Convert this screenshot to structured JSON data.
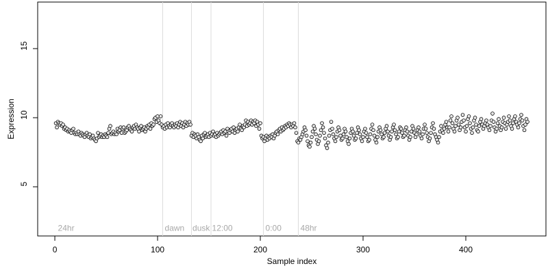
{
  "chart_data": {
    "type": "scatter",
    "xlabel": "Sample index",
    "ylabel": "Expression",
    "xlim": [
      -16.7,
      478
    ],
    "ylim": [
      1.44,
      18.37
    ],
    "xticks": [
      0,
      100,
      200,
      300,
      400
    ],
    "yticks": [
      5,
      10,
      15
    ],
    "vlines": [
      105,
      133,
      152,
      203,
      237
    ],
    "annotations": [
      {
        "x": 3,
        "y": 2,
        "label": "24hr"
      },
      {
        "x": 107,
        "y": 2,
        "label": "dawn"
      },
      {
        "x": 134,
        "y": 2,
        "label": "dusk"
      },
      {
        "x": 153,
        "y": 2,
        "label": "12:00"
      },
      {
        "x": 205,
        "y": 2,
        "label": "0:00"
      },
      {
        "x": 239,
        "y": 2,
        "label": "48hr"
      }
    ],
    "series": [
      {
        "color": "#e6e6e6",
        "x": [
          1,
          2,
          3,
          4,
          5,
          6,
          7,
          8,
          9,
          10,
          11,
          12,
          13,
          14,
          15,
          16,
          17,
          18,
          19,
          20,
          21,
          22,
          23,
          24,
          25,
          26,
          27,
          28,
          29,
          30,
          31,
          32,
          33,
          34,
          35,
          36,
          37,
          38,
          39,
          40,
          41,
          42,
          43,
          44,
          45,
          46,
          47,
          48,
          49,
          50,
          51,
          52,
          53,
          54,
          55,
          56,
          57,
          58,
          59,
          60,
          61,
          62,
          63,
          64,
          65,
          66,
          67,
          68,
          69,
          70,
          71,
          72,
          73,
          74,
          75,
          76,
          77,
          78,
          79,
          80,
          81,
          82,
          83,
          84,
          85,
          86,
          87,
          88,
          89,
          90,
          91,
          92,
          93,
          94,
          95,
          96,
          97,
          98,
          99,
          100,
          101,
          102,
          103,
          104,
          105,
          106,
          107,
          108,
          109,
          110,
          111,
          112,
          113,
          114,
          115,
          116,
          117,
          118,
          119,
          120,
          121,
          122,
          123,
          124,
          125,
          126,
          127,
          128,
          129,
          130,
          131,
          132,
          133,
          134,
          135,
          136,
          137,
          138,
          139,
          140,
          141,
          142,
          143,
          144,
          145,
          146,
          147,
          148,
          149,
          150,
          151,
          152,
          153,
          154,
          155,
          156,
          157,
          158,
          159,
          160,
          161,
          162,
          163,
          164,
          165,
          166,
          167,
          168,
          169,
          170,
          171,
          172,
          173,
          174,
          175,
          176,
          177,
          178,
          179,
          180,
          181,
          182,
          183,
          184,
          185,
          186,
          187,
          188,
          189,
          190,
          191,
          192,
          193,
          194,
          195,
          196,
          197,
          198,
          199,
          200,
          201,
          202,
          203,
          204,
          205,
          206,
          207,
          208,
          209,
          210,
          211,
          212,
          213,
          214,
          215,
          216,
          217,
          218,
          219,
          220,
          221,
          222,
          223,
          224,
          225,
          226,
          227,
          228,
          229,
          230,
          231,
          232,
          233,
          234,
          235,
          236,
          237,
          238,
          239,
          240,
          241,
          242,
          243,
          244,
          245,
          246,
          247,
          248,
          249,
          250,
          251,
          252,
          253,
          254,
          255,
          256,
          257,
          258,
          259,
          260,
          261,
          262,
          263,
          264,
          265,
          266,
          267,
          268,
          269,
          270,
          271,
          272,
          273,
          274,
          275,
          276,
          277,
          278,
          279,
          280,
          281,
          282,
          283,
          284,
          285,
          286,
          287,
          288,
          289,
          290,
          291,
          292,
          293,
          294,
          295,
          296,
          297,
          298,
          299,
          300,
          301,
          302,
          303,
          304,
          305,
          306,
          307,
          308,
          309,
          310,
          311,
          312,
          313,
          314,
          315,
          316,
          317,
          318,
          319,
          320,
          321,
          322,
          323,
          324,
          325,
          326,
          327,
          328,
          329,
          330,
          331,
          332,
          333,
          334,
          335,
          336,
          337,
          338,
          339,
          340,
          341,
          342,
          343,
          344,
          345,
          346,
          347,
          348,
          349,
          350,
          351,
          352,
          353,
          354,
          355,
          356,
          357,
          358,
          359,
          360,
          361,
          362,
          363,
          364,
          365,
          366,
          367,
          368,
          369,
          370,
          371,
          372,
          373,
          374,
          375,
          376,
          377,
          378,
          379,
          380,
          381,
          382,
          383,
          384,
          385,
          386,
          387,
          388,
          389,
          390,
          391,
          392,
          393,
          394,
          395,
          396,
          397,
          398,
          399,
          400,
          401,
          402,
          403,
          404,
          405,
          406,
          407,
          408,
          409,
          410,
          411,
          412,
          413,
          414,
          415,
          416,
          417,
          418,
          419,
          420,
          421,
          422,
          423,
          424,
          425,
          426,
          427,
          428,
          429,
          430,
          431,
          432,
          433,
          434,
          435,
          436,
          437,
          438,
          439,
          440,
          441,
          442,
          443,
          444,
          445,
          446,
          447,
          448,
          449,
          450,
          451,
          452,
          453,
          454,
          455,
          456,
          457,
          458,
          459,
          460
        ],
        "values": [
          9.6,
          9.3,
          9.7,
          9.6,
          9.5,
          9.6,
          9.4,
          9.5,
          9.2,
          9.3,
          9.1,
          9.2,
          9.0,
          9.1,
          9.0,
          8.9,
          9.1,
          9.2,
          8.9,
          8.8,
          8.9,
          8.8,
          9.0,
          8.8,
          8.7,
          8.9,
          8.8,
          8.7,
          8.6,
          8.8,
          8.9,
          8.7,
          8.6,
          8.8,
          8.5,
          8.6,
          8.7,
          8.5,
          8.4,
          8.3,
          8.5,
          8.9,
          8.6,
          8.7,
          8.8,
          8.6,
          8.7,
          8.6,
          8.8,
          8.7,
          8.6,
          8.9,
          9.2,
          9.4,
          8.8,
          8.9,
          9.0,
          8.8,
          8.9,
          8.8,
          9.2,
          9.0,
          9.1,
          9.3,
          8.9,
          9.2,
          9.3,
          8.9,
          9.0,
          9.1,
          9.3,
          9.4,
          9.2,
          9.1,
          9.0,
          9.3,
          9.4,
          9.2,
          9.5,
          9.3,
          9.2,
          9.0,
          9.3,
          9.4,
          9.1,
          9.2,
          9.3,
          9.0,
          9.2,
          9.4,
          9.3,
          9.5,
          9.2,
          9.6,
          9.4,
          9.5,
          9.9,
          10.0,
          9.7,
          10.1,
          9.8,
          9.6,
          10.1,
          9.5,
          9.3,
          9.4,
          9.2,
          9.5,
          9.3,
          9.6,
          9.4,
          9.3,
          9.5,
          9.6,
          9.4,
          9.3,
          9.5,
          9.4,
          9.6,
          9.3,
          9.5,
          9.7,
          9.4,
          9.6,
          9.3,
          9.5,
          9.7,
          9.4,
          9.6,
          9.5,
          9.7,
          9.5,
          8.7,
          8.9,
          8.6,
          8.8,
          8.7,
          8.5,
          8.8,
          8.6,
          8.4,
          8.3,
          8.7,
          8.5,
          8.8,
          8.9,
          8.6,
          8.7,
          8.8,
          8.6,
          8.9,
          8.7,
          8.8,
          9.0,
          8.7,
          8.8,
          8.6,
          8.9,
          8.7,
          8.8,
          8.9,
          9.0,
          8.8,
          9.1,
          8.9,
          9.0,
          8.7,
          9.2,
          9.0,
          8.9,
          9.1,
          9.2,
          9.0,
          9.3,
          8.9,
          9.1,
          9.2,
          9.0,
          9.3,
          9.5,
          9.2,
          9.1,
          9.4,
          9.3,
          9.5,
          9.8,
          9.4,
          9.7,
          9.5,
          9.6,
          9.8,
          9.5,
          9.7,
          9.6,
          9.8,
          9.4,
          9.7,
          9.5,
          9.2,
          9.6,
          8.7,
          8.5,
          8.6,
          8.3,
          8.5,
          8.7,
          8.4,
          8.6,
          8.5,
          8.7,
          8.6,
          8.8,
          8.5,
          8.7,
          8.9,
          9.0,
          8.8,
          9.1,
          9.2,
          9.0,
          9.3,
          9.1,
          9.2,
          9.4,
          9.3,
          9.5,
          9.4,
          9.6,
          9.5,
          9.3,
          9.5,
          9.4,
          9.6,
          9.3,
          8.9,
          8.3,
          8.2,
          8.5,
          8.4,
          8.6,
          8.8,
          9.0,
          9.3,
          9.1,
          8.7,
          8.3,
          8.0,
          7.9,
          8.2,
          8.6,
          9.0,
          9.4,
          9.2,
          8.8,
          8.4,
          8.1,
          8.3,
          8.7,
          9.1,
          9.6,
          9.3,
          8.9,
          8.5,
          8.0,
          7.8,
          8.2,
          8.7,
          9.1,
          9.7,
          9.2,
          8.8,
          8.5,
          8.3,
          8.6,
          9.0,
          9.3,
          9.1,
          8.7,
          8.4,
          8.5,
          8.8,
          9.2,
          9.0,
          8.6,
          8.3,
          8.1,
          8.5,
          8.9,
          9.2,
          9.0,
          8.7,
          8.4,
          8.5,
          8.9,
          9.3,
          9.1,
          8.8,
          8.5,
          8.3,
          8.6,
          9.0,
          9.2,
          8.9,
          8.6,
          8.3,
          8.4,
          8.8,
          9.2,
          9.5,
          9.1,
          8.7,
          8.4,
          8.2,
          8.6,
          9.0,
          9.3,
          9.1,
          8.8,
          8.5,
          8.6,
          8.9,
          9.2,
          9.4,
          9.0,
          8.7,
          8.4,
          8.6,
          9.0,
          9.3,
          9.5,
          9.1,
          8.8,
          8.5,
          8.6,
          9.0,
          9.3,
          9.2,
          8.9,
          8.6,
          8.7,
          9.1,
          9.3,
          9.0,
          8.7,
          8.4,
          8.6,
          9.0,
          9.4,
          9.2,
          8.9,
          8.6,
          8.8,
          9.1,
          9.3,
          9.0,
          8.7,
          8.5,
          8.8,
          9.2,
          9.5,
          9.2,
          8.9,
          8.6,
          8.3,
          8.5,
          8.9,
          9.3,
          9.6,
          9.2,
          8.8,
          8.6,
          8.4,
          8.2,
          8.6,
          9.0,
          9.4,
          9.1,
          8.9,
          9.2,
          9.5,
          9.7,
          9.3,
          9.0,
          9.3,
          9.8,
          10.1,
          9.6,
          9.2,
          9.0,
          9.4,
          9.8,
          10.0,
          9.5,
          9.1,
          9.3,
          9.7,
          10.2,
          9.8,
          9.3,
          9.0,
          9.4,
          9.9,
          10.1,
          9.6,
          9.2,
          8.9,
          9.3,
          9.8,
          10.0,
          9.5,
          9.1,
          9.0,
          9.4,
          9.7,
          9.9,
          9.5,
          9.2,
          9.4,
          9.6,
          9.8,
          9.5,
          9.3,
          9.1,
          9.4,
          9.8,
          10.3,
          9.7,
          9.3,
          9.0,
          9.2,
          9.6,
          9.9,
          9.4,
          9.1,
          9.3,
          9.7,
          10.0,
          9.6,
          9.2,
          9.5,
          9.7,
          10.1,
          9.8,
          9.4,
          9.2,
          9.6,
          9.9,
          10.1,
          9.7,
          9.5,
          9.3,
          9.6,
          9.9,
          10.2,
          9.8,
          9.4,
          9.1,
          9.5,
          9.9,
          9.7
        ]
      }
    ]
  }
}
